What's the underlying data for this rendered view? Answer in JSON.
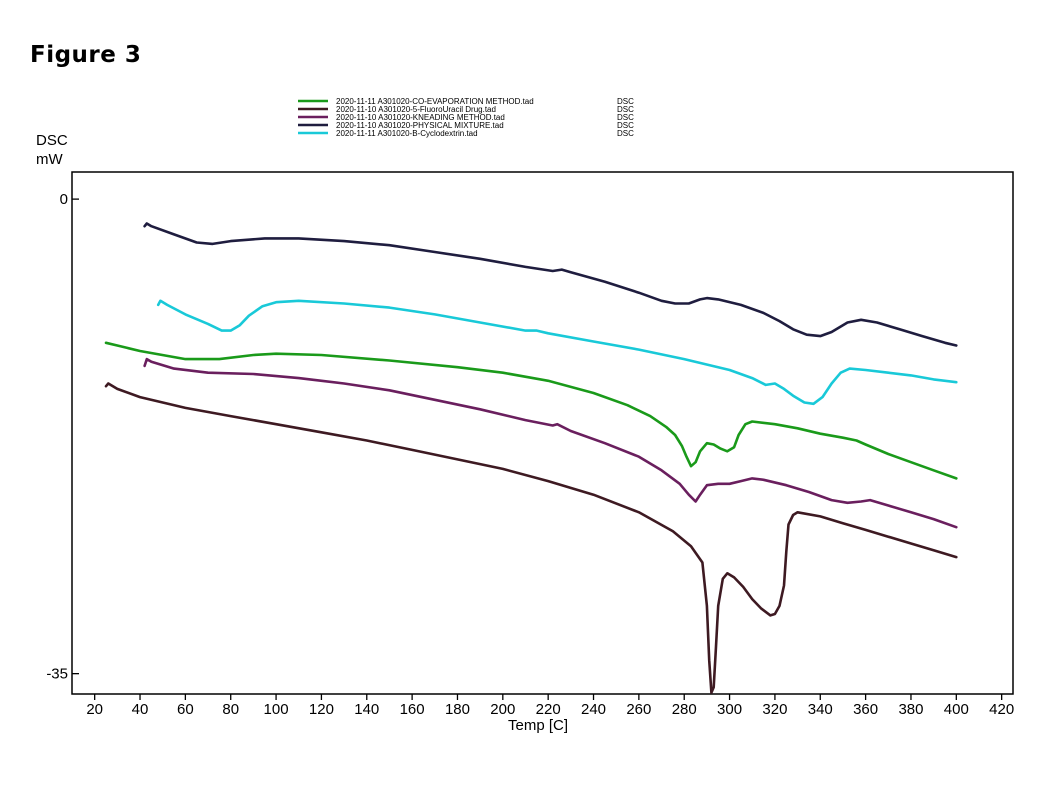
{
  "figure_label": "Figure 3",
  "chart_data": {
    "type": "line",
    "xlabel": "Temp [C]",
    "ylabel_line1": "DSC",
    "ylabel_line2": "mW",
    "xlim": [
      10,
      425
    ],
    "ylim": [
      -36.5,
      2
    ],
    "x_ticks": [
      20,
      40,
      60,
      80,
      100,
      120,
      140,
      160,
      180,
      200,
      220,
      240,
      260,
      280,
      300,
      320,
      340,
      360,
      380,
      400,
      420
    ],
    "x_tick_labels": [
      "20",
      "40",
      "60",
      "80",
      "100",
      "120",
      "140",
      "160",
      "180",
      "200",
      "220",
      "240",
      "260",
      "280",
      "300",
      "320",
      "340",
      "360",
      "380",
      "400",
      "420"
    ],
    "y_ticks": [
      0,
      -35
    ],
    "y_tick_labels": [
      "0",
      "-35"
    ],
    "grid": false,
    "legend_position": "top",
    "series": [
      {
        "name": "2020-11-11 A301020-CO-EVAPORATION METHOD.tad",
        "signal": "DSC",
        "color": "#1a9a1a",
        "points": [
          [
            25,
            -10.6
          ],
          [
            30,
            -10.8
          ],
          [
            40,
            -11.2
          ],
          [
            60,
            -11.8
          ],
          [
            75,
            -11.8
          ],
          [
            90,
            -11.5
          ],
          [
            100,
            -11.4
          ],
          [
            120,
            -11.5
          ],
          [
            150,
            -11.9
          ],
          [
            180,
            -12.4
          ],
          [
            200,
            -12.8
          ],
          [
            220,
            -13.4
          ],
          [
            240,
            -14.3
          ],
          [
            255,
            -15.2
          ],
          [
            265,
            -16.0
          ],
          [
            272,
            -16.8
          ],
          [
            276,
            -17.4
          ],
          [
            279,
            -18.2
          ],
          [
            281,
            -19.0
          ],
          [
            283,
            -19.7
          ],
          [
            285,
            -19.4
          ],
          [
            287,
            -18.6
          ],
          [
            290,
            -18.0
          ],
          [
            293,
            -18.1
          ],
          [
            296,
            -18.4
          ],
          [
            299,
            -18.6
          ],
          [
            302,
            -18.3
          ],
          [
            304,
            -17.4
          ],
          [
            307,
            -16.6
          ],
          [
            310,
            -16.4
          ],
          [
            320,
            -16.6
          ],
          [
            330,
            -16.9
          ],
          [
            340,
            -17.3
          ],
          [
            350,
            -17.6
          ],
          [
            356,
            -17.8
          ],
          [
            360,
            -18.1
          ],
          [
            370,
            -18.8
          ],
          [
            380,
            -19.4
          ],
          [
            390,
            -20.0
          ],
          [
            400,
            -20.6
          ]
        ]
      },
      {
        "name": "2020-11-10 A301020-5-FluoroUracil Drug.tad",
        "signal": "DSC",
        "color": "#3e1a22",
        "points": [
          [
            25,
            -13.8
          ],
          [
            26,
            -13.6
          ],
          [
            30,
            -14.0
          ],
          [
            40,
            -14.6
          ],
          [
            60,
            -15.4
          ],
          [
            80,
            -16.0
          ],
          [
            100,
            -16.6
          ],
          [
            120,
            -17.2
          ],
          [
            140,
            -17.8
          ],
          [
            160,
            -18.5
          ],
          [
            180,
            -19.2
          ],
          [
            200,
            -19.9
          ],
          [
            220,
            -20.8
          ],
          [
            240,
            -21.8
          ],
          [
            260,
            -23.1
          ],
          [
            275,
            -24.5
          ],
          [
            283,
            -25.6
          ],
          [
            288,
            -26.8
          ],
          [
            290,
            -30.0
          ],
          [
            291,
            -34.0
          ],
          [
            292,
            -36.4
          ],
          [
            293,
            -36.0
          ],
          [
            294,
            -33.0
          ],
          [
            295,
            -30.0
          ],
          [
            297,
            -28.0
          ],
          [
            299,
            -27.6
          ],
          [
            302,
            -27.9
          ],
          [
            306,
            -28.6
          ],
          [
            310,
            -29.5
          ],
          [
            314,
            -30.2
          ],
          [
            318,
            -30.7
          ],
          [
            320,
            -30.6
          ],
          [
            322,
            -30.0
          ],
          [
            324,
            -28.5
          ],
          [
            325,
            -26.0
          ],
          [
            326,
            -24.0
          ],
          [
            328,
            -23.3
          ],
          [
            330,
            -23.1
          ],
          [
            340,
            -23.4
          ],
          [
            350,
            -23.9
          ],
          [
            360,
            -24.4
          ],
          [
            370,
            -24.9
          ],
          [
            380,
            -25.4
          ],
          [
            390,
            -25.9
          ],
          [
            400,
            -26.4
          ]
        ]
      },
      {
        "name": "2020-11-10 A301020-KNEADING METHOD.tad",
        "signal": "DSC",
        "color": "#6a1f5e",
        "points": [
          [
            42,
            -12.3
          ],
          [
            43,
            -11.8
          ],
          [
            45,
            -12.0
          ],
          [
            55,
            -12.5
          ],
          [
            70,
            -12.8
          ],
          [
            90,
            -12.9
          ],
          [
            110,
            -13.2
          ],
          [
            130,
            -13.6
          ],
          [
            150,
            -14.1
          ],
          [
            170,
            -14.8
          ],
          [
            190,
            -15.5
          ],
          [
            210,
            -16.3
          ],
          [
            222,
            -16.7
          ],
          [
            224,
            -16.6
          ],
          [
            230,
            -17.1
          ],
          [
            245,
            -18.0
          ],
          [
            260,
            -19.0
          ],
          [
            270,
            -20.0
          ],
          [
            278,
            -21.0
          ],
          [
            282,
            -21.8
          ],
          [
            285,
            -22.3
          ],
          [
            287,
            -21.8
          ],
          [
            290,
            -21.1
          ],
          [
            295,
            -21.0
          ],
          [
            300,
            -21.0
          ],
          [
            305,
            -20.8
          ],
          [
            310,
            -20.6
          ],
          [
            315,
            -20.7
          ],
          [
            325,
            -21.1
          ],
          [
            335,
            -21.6
          ],
          [
            345,
            -22.2
          ],
          [
            352,
            -22.4
          ],
          [
            358,
            -22.3
          ],
          [
            362,
            -22.2
          ],
          [
            370,
            -22.6
          ],
          [
            380,
            -23.1
          ],
          [
            390,
            -23.6
          ],
          [
            400,
            -24.2
          ]
        ]
      },
      {
        "name": "2020-11-10 A301020-PHYSICAL MIXTURE.tad",
        "signal": "DSC",
        "color": "#1f1d3f",
        "points": [
          [
            42,
            -2.0
          ],
          [
            43,
            -1.8
          ],
          [
            45,
            -2.0
          ],
          [
            55,
            -2.6
          ],
          [
            65,
            -3.2
          ],
          [
            72,
            -3.3
          ],
          [
            80,
            -3.1
          ],
          [
            95,
            -2.9
          ],
          [
            110,
            -2.9
          ],
          [
            130,
            -3.1
          ],
          [
            150,
            -3.4
          ],
          [
            170,
            -3.9
          ],
          [
            190,
            -4.4
          ],
          [
            210,
            -5.0
          ],
          [
            222,
            -5.3
          ],
          [
            226,
            -5.2
          ],
          [
            230,
            -5.4
          ],
          [
            245,
            -6.1
          ],
          [
            260,
            -6.9
          ],
          [
            270,
            -7.5
          ],
          [
            276,
            -7.7
          ],
          [
            282,
            -7.7
          ],
          [
            287,
            -7.4
          ],
          [
            290,
            -7.3
          ],
          [
            295,
            -7.4
          ],
          [
            305,
            -7.8
          ],
          [
            315,
            -8.4
          ],
          [
            322,
            -9.0
          ],
          [
            328,
            -9.6
          ],
          [
            334,
            -10.0
          ],
          [
            340,
            -10.1
          ],
          [
            345,
            -9.8
          ],
          [
            352,
            -9.1
          ],
          [
            358,
            -8.9
          ],
          [
            365,
            -9.1
          ],
          [
            375,
            -9.6
          ],
          [
            385,
            -10.1
          ],
          [
            395,
            -10.6
          ],
          [
            400,
            -10.8
          ]
        ]
      },
      {
        "name": "2020-11-11 A301020-B-Cyclodextrin.tad",
        "signal": "DSC",
        "color": "#19c9d8",
        "points": [
          [
            48,
            -7.8
          ],
          [
            49,
            -7.5
          ],
          [
            52,
            -7.8
          ],
          [
            60,
            -8.5
          ],
          [
            70,
            -9.2
          ],
          [
            76,
            -9.7
          ],
          [
            80,
            -9.7
          ],
          [
            84,
            -9.3
          ],
          [
            88,
            -8.6
          ],
          [
            94,
            -7.9
          ],
          [
            100,
            -7.6
          ],
          [
            110,
            -7.5
          ],
          [
            130,
            -7.7
          ],
          [
            150,
            -8.0
          ],
          [
            170,
            -8.5
          ],
          [
            190,
            -9.1
          ],
          [
            210,
            -9.7
          ],
          [
            215,
            -9.7
          ],
          [
            220,
            -9.9
          ],
          [
            240,
            -10.5
          ],
          [
            260,
            -11.1
          ],
          [
            280,
            -11.8
          ],
          [
            300,
            -12.6
          ],
          [
            310,
            -13.2
          ],
          [
            316,
            -13.7
          ],
          [
            320,
            -13.6
          ],
          [
            324,
            -14.0
          ],
          [
            328,
            -14.5
          ],
          [
            333,
            -15.0
          ],
          [
            337,
            -15.1
          ],
          [
            341,
            -14.6
          ],
          [
            345,
            -13.6
          ],
          [
            349,
            -12.8
          ],
          [
            353,
            -12.5
          ],
          [
            360,
            -12.6
          ],
          [
            370,
            -12.8
          ],
          [
            380,
            -13.0
          ],
          [
            390,
            -13.3
          ],
          [
            400,
            -13.5
          ]
        ]
      }
    ]
  }
}
